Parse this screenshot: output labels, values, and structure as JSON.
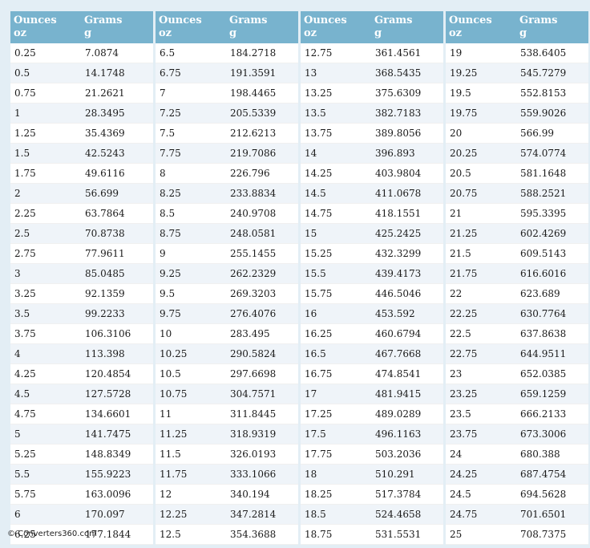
{
  "header": {
    "ounces": "Ounces",
    "ounces_unit": "oz",
    "grams": "Grams",
    "grams_unit": "g"
  },
  "columns": [
    {
      "rows": [
        [
          "0.25",
          "7.0874"
        ],
        [
          "0.5",
          "14.1748"
        ],
        [
          "0.75",
          "21.2621"
        ],
        [
          "1",
          "28.3495"
        ],
        [
          "1.25",
          "35.4369"
        ],
        [
          "1.5",
          "42.5243"
        ],
        [
          "1.75",
          "49.6116"
        ],
        [
          "2",
          "56.699"
        ],
        [
          "2.25",
          "63.7864"
        ],
        [
          "2.5",
          "70.8738"
        ],
        [
          "2.75",
          "77.9611"
        ],
        [
          "3",
          "85.0485"
        ],
        [
          "3.25",
          "92.1359"
        ],
        [
          "3.5",
          "99.2233"
        ],
        [
          "3.75",
          "106.3106"
        ],
        [
          "4",
          "113.398"
        ],
        [
          "4.25",
          "120.4854"
        ],
        [
          "4.5",
          "127.5728"
        ],
        [
          "4.75",
          "134.6601"
        ],
        [
          "5",
          "141.7475"
        ],
        [
          "5.25",
          "148.8349"
        ],
        [
          "5.5",
          "155.9223"
        ],
        [
          "5.75",
          "163.0096"
        ],
        [
          "6",
          "170.097"
        ],
        [
          "6.25",
          "177.1844"
        ]
      ]
    },
    {
      "rows": [
        [
          "6.5",
          "184.2718"
        ],
        [
          "6.75",
          "191.3591"
        ],
        [
          "7",
          "198.4465"
        ],
        [
          "7.25",
          "205.5339"
        ],
        [
          "7.5",
          "212.6213"
        ],
        [
          "7.75",
          "219.7086"
        ],
        [
          "8",
          "226.796"
        ],
        [
          "8.25",
          "233.8834"
        ],
        [
          "8.5",
          "240.9708"
        ],
        [
          "8.75",
          "248.0581"
        ],
        [
          "9",
          "255.1455"
        ],
        [
          "9.25",
          "262.2329"
        ],
        [
          "9.5",
          "269.3203"
        ],
        [
          "9.75",
          "276.4076"
        ],
        [
          "10",
          "283.495"
        ],
        [
          "10.25",
          "290.5824"
        ],
        [
          "10.5",
          "297.6698"
        ],
        [
          "10.75",
          "304.7571"
        ],
        [
          "11",
          "311.8445"
        ],
        [
          "11.25",
          "318.9319"
        ],
        [
          "11.5",
          "326.0193"
        ],
        [
          "11.75",
          "333.1066"
        ],
        [
          "12",
          "340.194"
        ],
        [
          "12.25",
          "347.2814"
        ],
        [
          "12.5",
          "354.3688"
        ]
      ]
    },
    {
      "rows": [
        [
          "12.75",
          "361.4561"
        ],
        [
          "13",
          "368.5435"
        ],
        [
          "13.25",
          "375.6309"
        ],
        [
          "13.5",
          "382.7183"
        ],
        [
          "13.75",
          "389.8056"
        ],
        [
          "14",
          "396.893"
        ],
        [
          "14.25",
          "403.9804"
        ],
        [
          "14.5",
          "411.0678"
        ],
        [
          "14.75",
          "418.1551"
        ],
        [
          "15",
          "425.2425"
        ],
        [
          "15.25",
          "432.3299"
        ],
        [
          "15.5",
          "439.4173"
        ],
        [
          "15.75",
          "446.5046"
        ],
        [
          "16",
          "453.592"
        ],
        [
          "16.25",
          "460.6794"
        ],
        [
          "16.5",
          "467.7668"
        ],
        [
          "16.75",
          "474.8541"
        ],
        [
          "17",
          "481.9415"
        ],
        [
          "17.25",
          "489.0289"
        ],
        [
          "17.5",
          "496.1163"
        ],
        [
          "17.75",
          "503.2036"
        ],
        [
          "18",
          "510.291"
        ],
        [
          "18.25",
          "517.3784"
        ],
        [
          "18.5",
          "524.4658"
        ],
        [
          "18.75",
          "531.5531"
        ]
      ]
    },
    {
      "rows": [
        [
          "19",
          "538.6405"
        ],
        [
          "19.25",
          "545.7279"
        ],
        [
          "19.5",
          "552.8153"
        ],
        [
          "19.75",
          "559.9026"
        ],
        [
          "20",
          "566.99"
        ],
        [
          "20.25",
          "574.0774"
        ],
        [
          "20.5",
          "581.1648"
        ],
        [
          "20.75",
          "588.2521"
        ],
        [
          "21",
          "595.3395"
        ],
        [
          "21.25",
          "602.4269"
        ],
        [
          "21.5",
          "609.5143"
        ],
        [
          "21.75",
          "616.6016"
        ],
        [
          "22",
          "623.689"
        ],
        [
          "22.25",
          "630.7764"
        ],
        [
          "22.5",
          "637.8638"
        ],
        [
          "22.75",
          "644.9511"
        ],
        [
          "23",
          "652.0385"
        ],
        [
          "23.25",
          "659.1259"
        ],
        [
          "23.5",
          "666.2133"
        ],
        [
          "23.75",
          "673.3006"
        ],
        [
          "24",
          "680.388"
        ],
        [
          "24.25",
          "687.4754"
        ],
        [
          "24.5",
          "694.5628"
        ],
        [
          "24.75",
          "701.6501"
        ],
        [
          "25",
          "708.7375"
        ]
      ]
    }
  ],
  "footer": {
    "copyright": "© Converters360.com"
  }
}
